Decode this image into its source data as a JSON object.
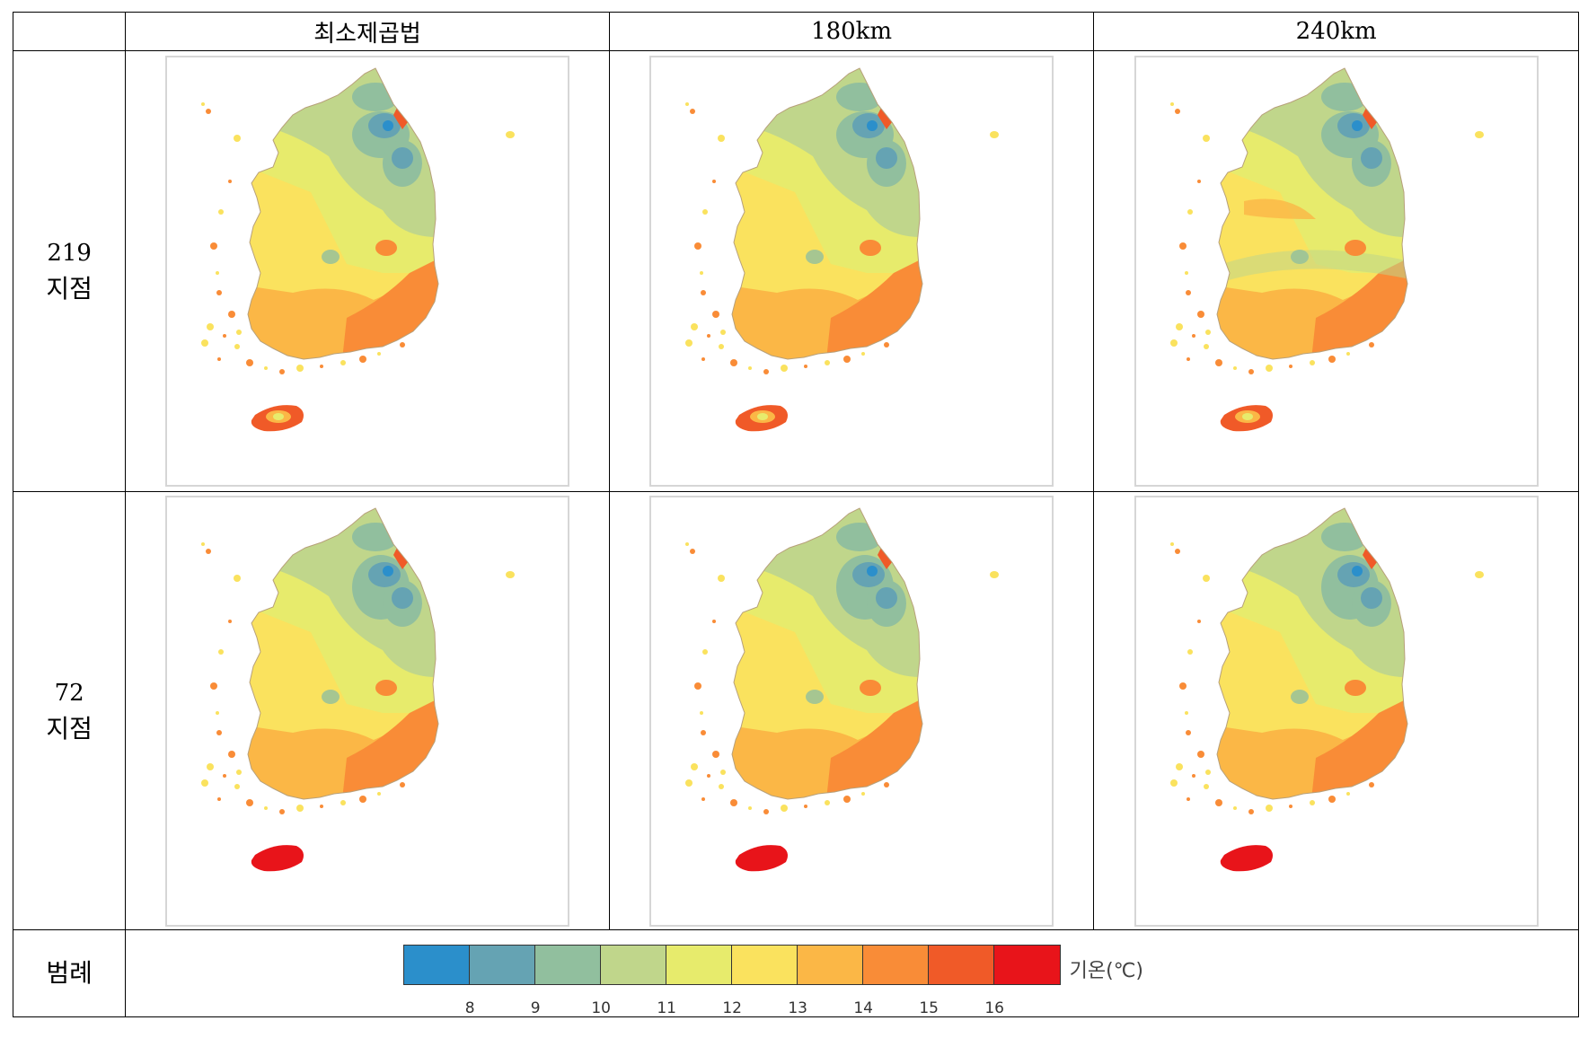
{
  "table": {
    "headers": [
      "",
      "최소제곱법",
      "180km",
      "240km"
    ],
    "rows": [
      {
        "label_num": "219",
        "label_unit": "지점"
      },
      {
        "label_num": "72",
        "label_unit": "지점"
      }
    ],
    "legend_row_label": "범례"
  },
  "legend": {
    "unit": "기온(℃)",
    "colors": [
      "#2b8fcb",
      "#65a3b3",
      "#91bf9e",
      "#c0d68b",
      "#e7eb6c",
      "#fae25e",
      "#fbb746",
      "#f98c37",
      "#f05a28",
      "#e8141a"
    ],
    "ticks": [
      "8",
      "9",
      "10",
      "11",
      "12",
      "13",
      "14",
      "15",
      "16"
    ]
  },
  "colors": {
    "blue_core": "#2b8fcb",
    "blue_mid": "#65a3b3",
    "teal": "#91bf9e",
    "green_yellow": "#c0d68b",
    "yellow_light": "#e7eb6c",
    "yellow": "#fae25e",
    "orange_light": "#fbb746",
    "orange": "#f98c37",
    "red_orange": "#f05a28",
    "red": "#e8141a"
  }
}
